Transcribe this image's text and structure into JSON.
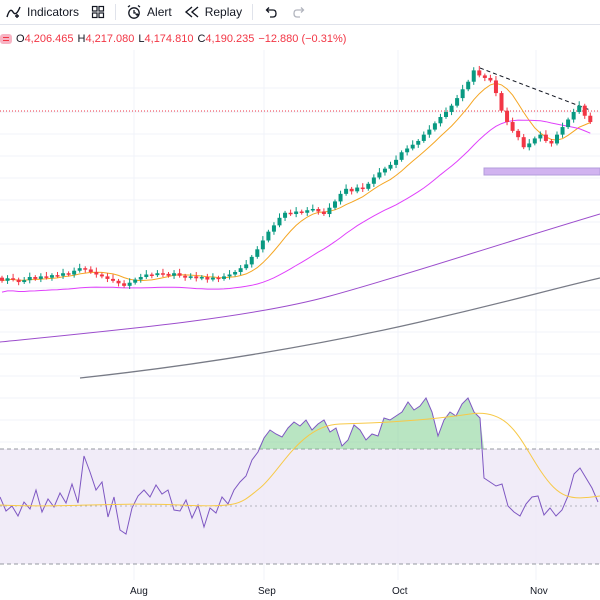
{
  "toolbar": {
    "indicators_label": "Indicators",
    "alert_label": "Alert",
    "replay_label": "Replay"
  },
  "ohlc": {
    "o_label": "O",
    "o_value": "4,206.465",
    "h_label": "H",
    "h_value": "4,217.080",
    "l_label": "L",
    "l_value": "4,174.810",
    "c_label": "C",
    "c_value": "4,190.235",
    "change": "−12.880 (−0.31%)"
  },
  "colors": {
    "up": "#089981",
    "down": "#f23645",
    "ma_short": "#f5a623",
    "ma_mid": "#e040fb",
    "ma_long_purple": "#9c4dcc",
    "ma_long_gray": "#787b86",
    "rsi_line": "#7e57c2",
    "rsi_ma": "#f7c948",
    "rsi_band": "#ede7f6"
  },
  "chart_data": {
    "type": "candlestick",
    "x_tick_labels": [
      "Aug",
      "Sep",
      "Oct",
      "Nov"
    ],
    "rsi_levels": [
      70,
      30
    ],
    "candles_relative": [
      [
        0.45,
        0.4
      ],
      [
        0.4,
        0.44
      ],
      [
        0.44,
        0.42
      ],
      [
        0.42,
        0.38
      ],
      [
        0.38,
        0.41
      ],
      [
        0.41,
        0.46
      ],
      [
        0.46,
        0.43
      ],
      [
        0.43,
        0.47
      ],
      [
        0.47,
        0.45
      ],
      [
        0.45,
        0.49
      ],
      [
        0.49,
        0.48
      ],
      [
        0.48,
        0.52
      ],
      [
        0.52,
        0.5
      ],
      [
        0.5,
        0.56
      ],
      [
        0.56,
        0.6
      ],
      [
        0.6,
        0.58
      ],
      [
        0.58,
        0.54
      ],
      [
        0.54,
        0.5
      ],
      [
        0.5,
        0.47
      ],
      [
        0.47,
        0.43
      ],
      [
        0.43,
        0.4
      ],
      [
        0.4,
        0.36
      ],
      [
        0.36,
        0.32
      ],
      [
        0.32,
        0.37
      ],
      [
        0.37,
        0.42
      ],
      [
        0.42,
        0.46
      ],
      [
        0.46,
        0.5
      ],
      [
        0.5,
        0.49
      ],
      [
        0.49,
        0.52
      ],
      [
        0.52,
        0.51
      ],
      [
        0.51,
        0.48
      ],
      [
        0.48,
        0.52
      ],
      [
        0.52,
        0.48
      ],
      [
        0.48,
        0.45
      ],
      [
        0.45,
        0.47
      ],
      [
        0.47,
        0.44
      ],
      [
        0.44,
        0.46
      ],
      [
        0.46,
        0.42
      ],
      [
        0.42,
        0.45
      ],
      [
        0.45,
        0.43
      ],
      [
        0.43,
        0.47
      ],
      [
        0.47,
        0.5
      ],
      [
        0.5,
        0.54
      ],
      [
        0.54,
        0.6
      ],
      [
        0.6,
        0.66
      ],
      [
        0.66,
        0.78
      ],
      [
        0.78,
        0.9
      ],
      [
        0.9,
        1.04
      ],
      [
        1.04,
        1.18
      ],
      [
        1.18,
        1.28
      ],
      [
        1.28,
        1.4
      ],
      [
        1.4,
        1.48
      ],
      [
        1.48,
        1.46
      ],
      [
        1.46,
        1.5
      ],
      [
        1.5,
        1.48
      ],
      [
        1.48,
        1.52
      ],
      [
        1.52,
        1.54
      ],
      [
        1.54,
        1.5
      ],
      [
        1.5,
        1.46
      ],
      [
        1.46,
        1.56
      ],
      [
        1.56,
        1.66
      ],
      [
        1.66,
        1.78
      ],
      [
        1.78,
        1.86
      ],
      [
        1.86,
        1.82
      ],
      [
        1.82,
        1.88
      ],
      [
        1.88,
        1.86
      ],
      [
        1.86,
        1.94
      ],
      [
        1.94,
        2.04
      ],
      [
        2.04,
        2.12
      ],
      [
        2.12,
        2.18
      ],
      [
        2.18,
        2.24
      ],
      [
        2.24,
        2.32
      ],
      [
        2.32,
        2.44
      ],
      [
        2.44,
        2.5
      ],
      [
        2.5,
        2.56
      ],
      [
        2.56,
        2.62
      ],
      [
        2.62,
        2.72
      ],
      [
        2.72,
        2.8
      ],
      [
        2.8,
        2.9
      ],
      [
        2.9,
        3.0
      ],
      [
        3.0,
        3.08
      ],
      [
        3.08,
        3.18
      ],
      [
        3.18,
        3.3
      ],
      [
        3.3,
        3.44
      ],
      [
        3.44,
        3.56
      ],
      [
        3.56,
        3.74
      ],
      [
        3.74,
        3.66
      ],
      [
        3.66,
        3.62
      ],
      [
        3.62,
        3.58
      ],
      [
        3.58,
        3.38
      ],
      [
        3.38,
        3.1
      ],
      [
        3.1,
        2.92
      ],
      [
        2.92,
        2.78
      ],
      [
        2.78,
        2.68
      ],
      [
        2.68,
        2.52
      ],
      [
        2.52,
        2.58
      ],
      [
        2.58,
        2.66
      ],
      [
        2.66,
        2.72
      ],
      [
        2.72,
        2.62
      ],
      [
        2.62,
        2.58
      ],
      [
        2.58,
        2.72
      ],
      [
        2.72,
        2.84
      ],
      [
        2.84,
        2.96
      ],
      [
        2.96,
        3.08
      ],
      [
        3.08,
        3.18
      ],
      [
        3.18,
        3.02
      ],
      [
        3.02,
        2.92
      ]
    ]
  }
}
